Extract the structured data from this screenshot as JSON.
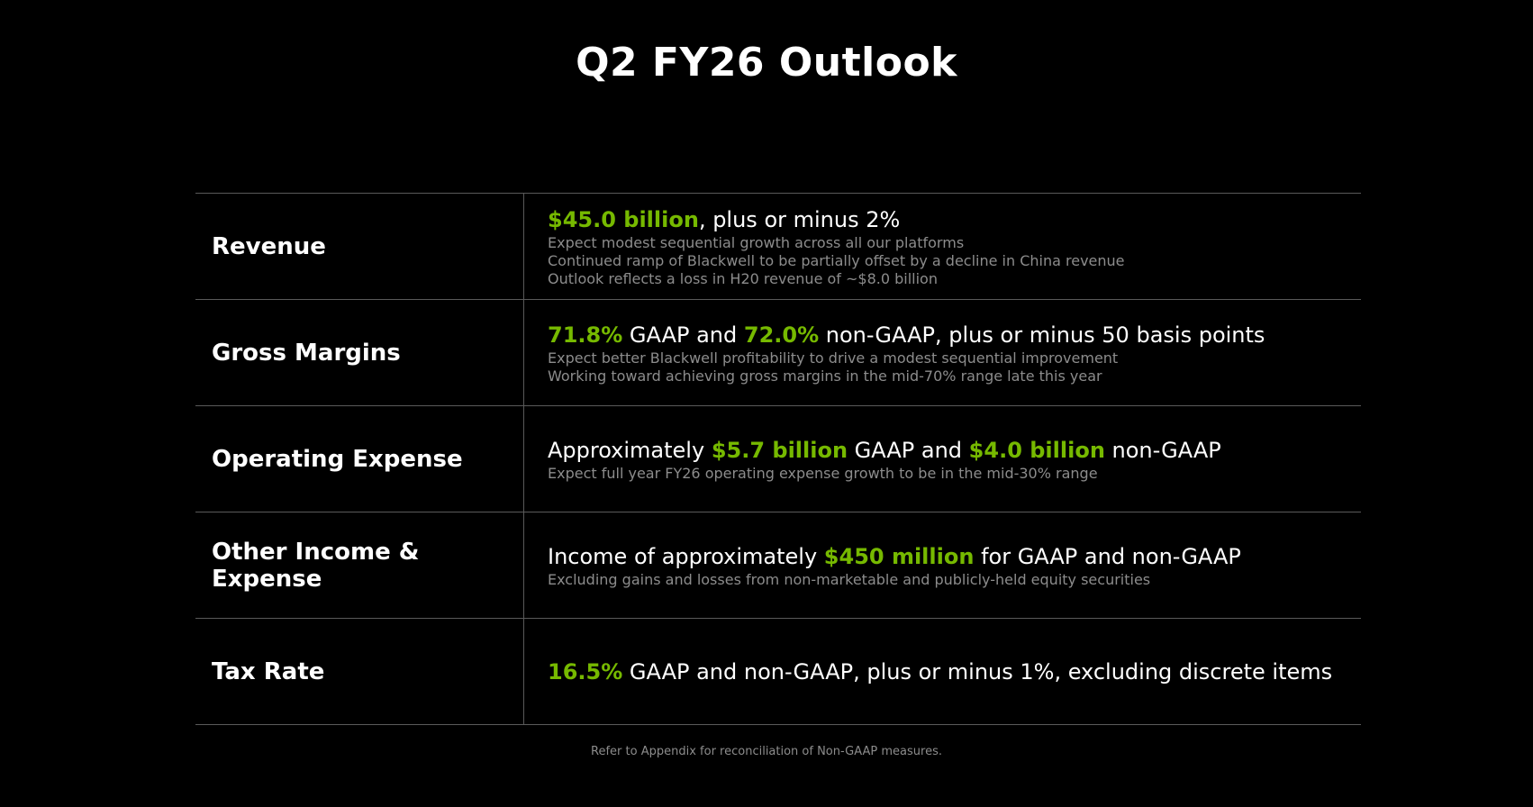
{
  "title": "Q2 FY26 Outlook",
  "accent_color": "#76b900",
  "rows": [
    {
      "label": "Revenue",
      "headline": [
        {
          "text": "$45.0 billion",
          "highlight": true
        },
        {
          "text": ", plus or minus 2%",
          "highlight": false
        }
      ],
      "details": [
        "Expect modest sequential growth across all our platforms",
        "Continued ramp of Blackwell to be partially offset by a decline in China revenue",
        "Outlook reflects a loss in H20 revenue of ~$8.0 billion"
      ]
    },
    {
      "label": "Gross Margins",
      "headline": [
        {
          "text": "71.8%",
          "highlight": true
        },
        {
          "text": " GAAP and ",
          "highlight": false
        },
        {
          "text": "72.0%",
          "highlight": true
        },
        {
          "text": " non-GAAP, plus or minus 50 basis points",
          "highlight": false
        }
      ],
      "details": [
        "Expect better Blackwell profitability to drive a modest sequential improvement",
        "Working toward achieving gross margins in the mid-70% range late this year"
      ]
    },
    {
      "label": "Operating Expense",
      "headline": [
        {
          "text": "Approximately ",
          "highlight": false
        },
        {
          "text": "$5.7 billion",
          "highlight": true
        },
        {
          "text": " GAAP and ",
          "highlight": false
        },
        {
          "text": "$4.0 billion",
          "highlight": true
        },
        {
          "text": " non-GAAP",
          "highlight": false
        }
      ],
      "details": [
        "Expect full year FY26 operating expense growth to be in the mid-30% range"
      ]
    },
    {
      "label": "Other Income & Expense",
      "headline": [
        {
          "text": "Income of approximately ",
          "highlight": false
        },
        {
          "text": "$450 million",
          "highlight": true
        },
        {
          "text": " for GAAP and non-GAAP",
          "highlight": false
        }
      ],
      "details": [
        "Excluding gains and losses from non-marketable and publicly-held equity securities"
      ]
    },
    {
      "label": "Tax Rate",
      "headline": [
        {
          "text": "16.5%",
          "highlight": true
        },
        {
          "text": " GAAP and non-GAAP, plus or minus 1%, excluding discrete items",
          "highlight": false
        }
      ],
      "details": []
    }
  ],
  "footnote": "Refer to Appendix for reconciliation of Non-GAAP measures."
}
